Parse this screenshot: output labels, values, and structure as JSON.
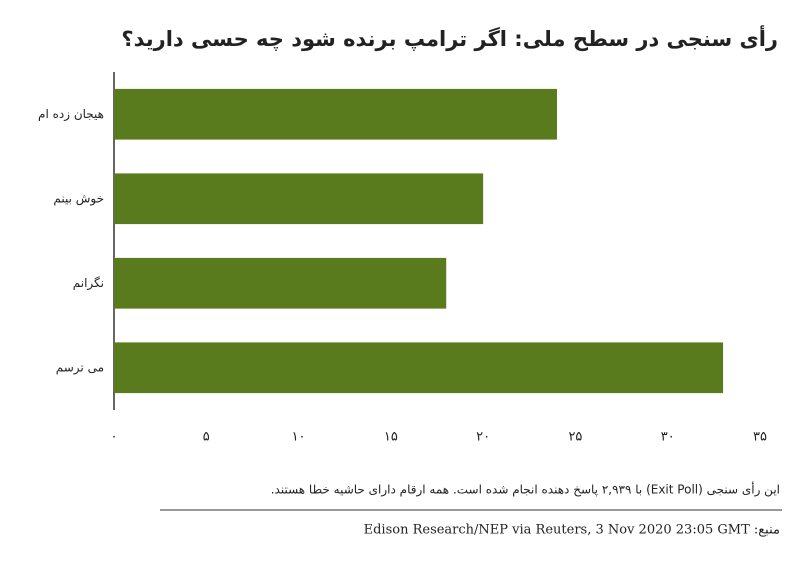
{
  "chart_data": {
    "type": "bar",
    "orientation": "horizontal",
    "title": "رأی سنجی در سطح ملی: اگر ترامپ برنده شود چه حسی دارید؟",
    "categories": [
      "هیجان زده ام",
      "خوش بینم",
      "نگرانم",
      "می ترسم"
    ],
    "values": [
      24,
      20,
      18,
      33
    ],
    "color": "#5a7a1e",
    "xlim": [
      0,
      35
    ],
    "xticks": [
      {
        "value": 0,
        "label": "۰"
      },
      {
        "value": 5,
        "label": "۵"
      },
      {
        "value": 10,
        "label": "۱۰"
      },
      {
        "value": 15,
        "label": "۱۵"
      },
      {
        "value": 20,
        "label": "۲۰"
      },
      {
        "value": 25,
        "label": "۲۵"
      },
      {
        "value": 30,
        "label": "۳۰"
      },
      {
        "value": 35,
        "label": "۳۵"
      }
    ],
    "footnote": "این رأی سنجی (Exit Poll) با ۲,۹۳۹ پاسخ دهنده انجام شده است. همه ارقام دارای حاشیه خطا هستند.",
    "source": "منبع: Edison Research/NEP via Reuters, 3 Nov 2020 23:05 GMT"
  }
}
